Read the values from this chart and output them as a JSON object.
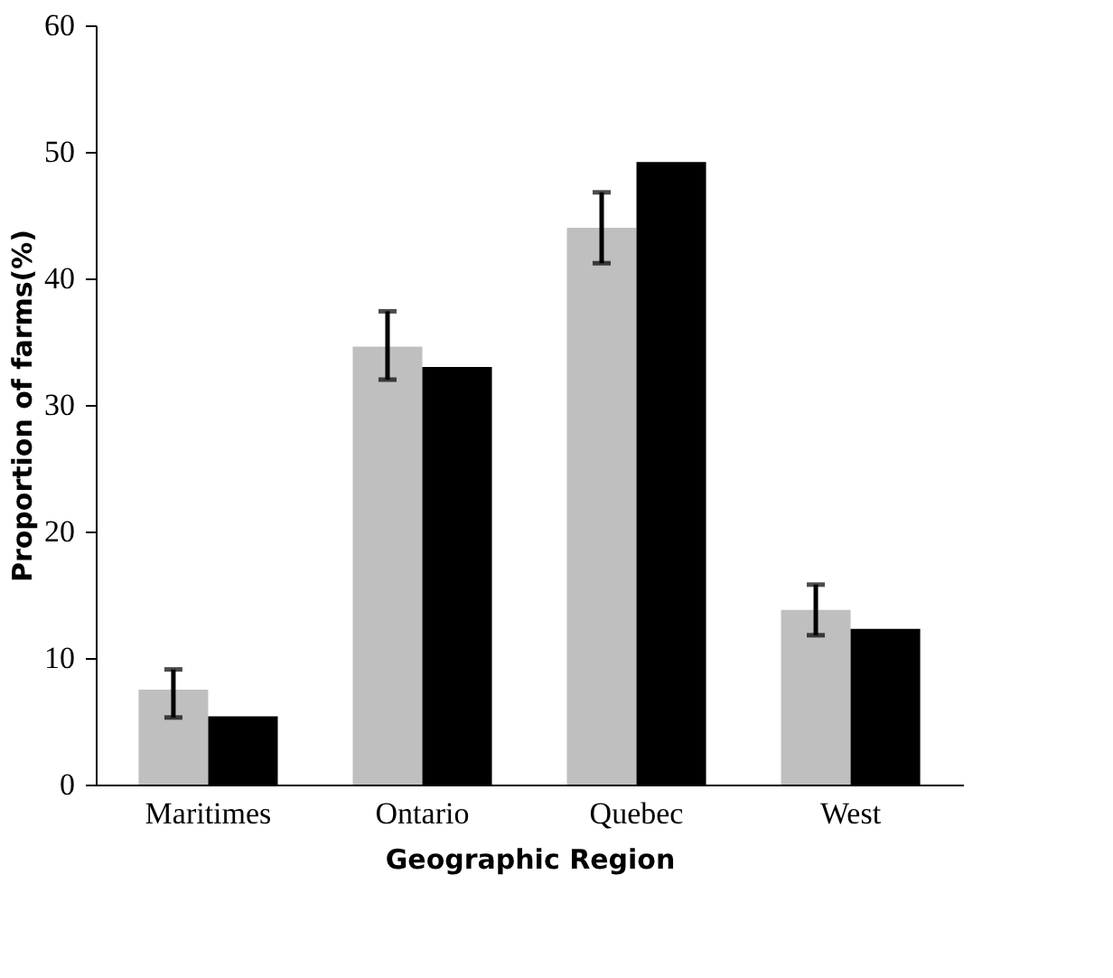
{
  "chart_data": {
    "type": "bar",
    "xlabel": "Geographic Region",
    "ylabel": "Proportion of farms(%)",
    "categories": [
      "Maritimes",
      "Ontario",
      "Quebec",
      "West"
    ],
    "series": [
      {
        "color": "#bfbfbf",
        "values": [
          7.5,
          34.6,
          44.0,
          13.8
        ],
        "errors": [
          [
            5.3,
            9.1
          ],
          [
            32.0,
            37.4
          ],
          [
            41.2,
            46.8
          ],
          [
            11.8,
            15.8
          ]
        ]
      },
      {
        "color": "#000000",
        "values": [
          5.4,
          33.0,
          49.2,
          12.3
        ]
      }
    ],
    "ylim": [
      0,
      60
    ],
    "yticks": [
      0,
      10,
      20,
      30,
      40,
      50,
      60
    ],
    "grid": false
  }
}
